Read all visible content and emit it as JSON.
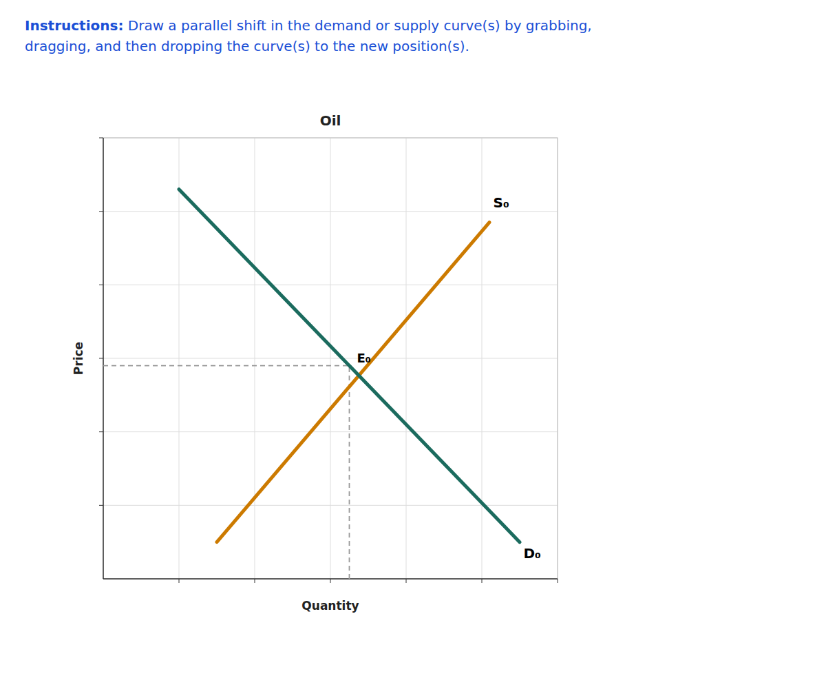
{
  "chart_data": {
    "type": "line",
    "title": "Oil",
    "xlabel": "Quantity",
    "ylabel": "Price",
    "instructions": {
      "heading": "Instructions:",
      "lines": [
        " Draw a parallel shift in the demand or supply curve(s) by grabbing,",
        "dragging, and then dropping the curve(s) to the new position(s)."
      ]
    },
    "xlim": [
      0,
      6
    ],
    "ylim": [
      0,
      6
    ],
    "xticks": [
      1,
      2,
      3,
      4,
      5,
      6
    ],
    "yticks": [
      1,
      2,
      3,
      4,
      5,
      6
    ],
    "grid": true,
    "tick_labels": false,
    "series": [
      {
        "color": "#CC7A00",
        "x": [
          1.5,
          5.1
        ],
        "values": [
          0.5,
          4.85
        ]
      },
      {
        "color": "#1B6B5E",
        "x": [
          1.0,
          5.5
        ],
        "values": [
          5.3,
          0.5
        ]
      }
    ],
    "equilibrium": {
      "x": 3.25,
      "y": 2.9,
      "label": "E₀"
    },
    "annotations": [
      {
        "text": "S₀",
        "x": 5.15,
        "y": 5.05
      },
      {
        "text": "D₀",
        "x": 5.55,
        "y": 0.42
      }
    ]
  }
}
